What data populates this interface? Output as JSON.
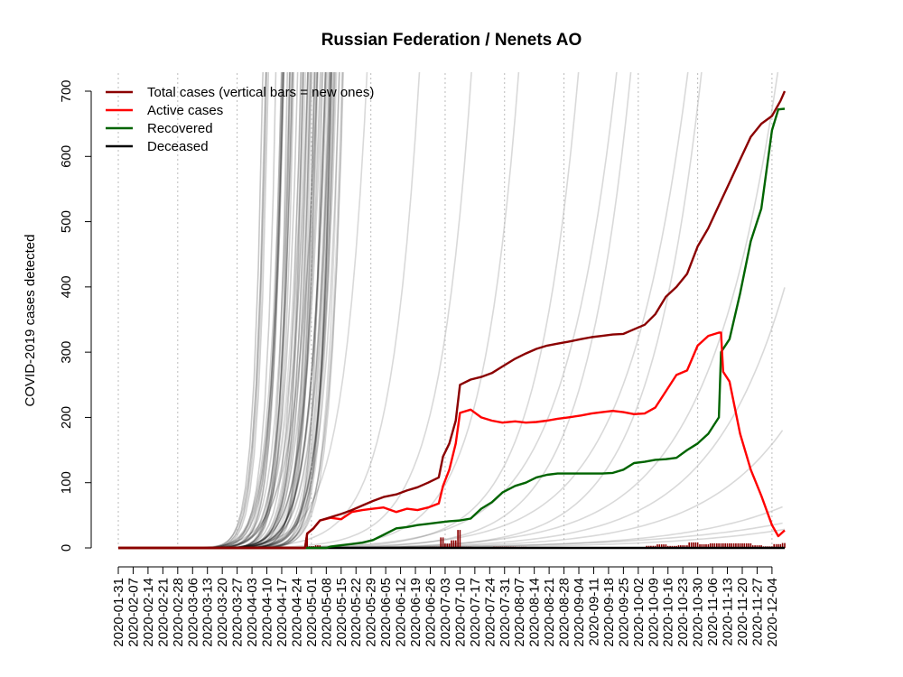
{
  "chart_data": {
    "type": "line",
    "title": "Russian Federation / Nenets AO",
    "xlabel": "",
    "ylabel": "COVID-2019 cases detected",
    "x_axis_type": "date",
    "xlim": [
      "2020-01-31",
      "2020-12-10"
    ],
    "ylim": [
      0,
      700
    ],
    "y_ticks": [
      0,
      100,
      200,
      300,
      400,
      500,
      600,
      700
    ],
    "x_tick_labels": [
      "2020-01-31",
      "2020-02-07",
      "2020-02-14",
      "2020-02-21",
      "2020-02-28",
      "2020-03-06",
      "2020-03-13",
      "2020-03-20",
      "2020-03-27",
      "2020-04-03",
      "2020-04-10",
      "2020-04-17",
      "2020-04-24",
      "2020-05-01",
      "2020-05-08",
      "2020-05-15",
      "2020-05-22",
      "2020-05-29",
      "2020-06-05",
      "2020-06-12",
      "2020-06-19",
      "2020-06-26",
      "2020-07-03",
      "2020-07-10",
      "2020-07-17",
      "2020-07-24",
      "2020-07-31",
      "2020-08-07",
      "2020-08-14",
      "2020-08-21",
      "2020-08-28",
      "2020-09-04",
      "2020-09-11",
      "2020-09-18",
      "2020-09-25",
      "2020-10-02",
      "2020-10-09",
      "2020-10-16",
      "2020-10-23",
      "2020-10-30",
      "2020-11-06",
      "2020-11-13",
      "2020-11-20",
      "2020-11-27",
      "2020-12-04"
    ],
    "monthly_gridlines": [
      "2020-01-31",
      "2020-02-28",
      "2020-03-27",
      "2020-05-01",
      "2020-05-29",
      "2020-07-03",
      "2020-07-31",
      "2020-08-28",
      "2020-10-02",
      "2020-10-30",
      "2020-12-04"
    ],
    "grid": "vertical dotted lines at month starts",
    "legend_position": "top-left",
    "colors": {
      "total": "#8b0000",
      "active": "#ff0000",
      "recovered": "#006400",
      "deceased": "#000000",
      "background_regions": "#000000"
    },
    "series": [
      {
        "name": "Total cases (vertical bars = new ones)",
        "color": "#8b0000",
        "points": [
          [
            "2020-01-31",
            0
          ],
          [
            "2020-04-28",
            0
          ],
          [
            "2020-04-29",
            22
          ],
          [
            "2020-05-02",
            30
          ],
          [
            "2020-05-05",
            42
          ],
          [
            "2020-05-10",
            47
          ],
          [
            "2020-05-15",
            52
          ],
          [
            "2020-05-20",
            58
          ],
          [
            "2020-05-25",
            65
          ],
          [
            "2020-05-30",
            72
          ],
          [
            "2020-06-04",
            78
          ],
          [
            "2020-06-10",
            82
          ],
          [
            "2020-06-15",
            88
          ],
          [
            "2020-06-20",
            93
          ],
          [
            "2020-06-25",
            100
          ],
          [
            "2020-06-30",
            108
          ],
          [
            "2020-07-02",
            140
          ],
          [
            "2020-07-05",
            160
          ],
          [
            "2020-07-08",
            195
          ],
          [
            "2020-07-10",
            250
          ],
          [
            "2020-07-15",
            258
          ],
          [
            "2020-07-20",
            262
          ],
          [
            "2020-07-25",
            268
          ],
          [
            "2020-07-30",
            278
          ],
          [
            "2020-08-05",
            290
          ],
          [
            "2020-08-10",
            298
          ],
          [
            "2020-08-15",
            305
          ],
          [
            "2020-08-20",
            310
          ],
          [
            "2020-08-25",
            313
          ],
          [
            "2020-08-30",
            316
          ],
          [
            "2020-09-05",
            320
          ],
          [
            "2020-09-10",
            323
          ],
          [
            "2020-09-15",
            325
          ],
          [
            "2020-09-20",
            327
          ],
          [
            "2020-09-25",
            328
          ],
          [
            "2020-09-30",
            335
          ],
          [
            "2020-10-05",
            342
          ],
          [
            "2020-10-10",
            358
          ],
          [
            "2020-10-15",
            385
          ],
          [
            "2020-10-20",
            400
          ],
          [
            "2020-10-25",
            420
          ],
          [
            "2020-10-30",
            462
          ],
          [
            "2020-11-04",
            490
          ],
          [
            "2020-11-09",
            525
          ],
          [
            "2020-11-14",
            560
          ],
          [
            "2020-11-19",
            595
          ],
          [
            "2020-11-24",
            630
          ],
          [
            "2020-11-29",
            650
          ],
          [
            "2020-12-04",
            662
          ],
          [
            "2020-12-08",
            685
          ],
          [
            "2020-12-10",
            700
          ]
        ]
      },
      {
        "name": "Active cases",
        "color": "#ff0000",
        "points": [
          [
            "2020-01-31",
            0
          ],
          [
            "2020-04-28",
            0
          ],
          [
            "2020-04-29",
            22
          ],
          [
            "2020-05-02",
            30
          ],
          [
            "2020-05-05",
            42
          ],
          [
            "2020-05-10",
            46
          ],
          [
            "2020-05-15",
            44
          ],
          [
            "2020-05-20",
            55
          ],
          [
            "2020-05-25",
            58
          ],
          [
            "2020-05-30",
            60
          ],
          [
            "2020-06-04",
            62
          ],
          [
            "2020-06-10",
            55
          ],
          [
            "2020-06-15",
            60
          ],
          [
            "2020-06-20",
            58
          ],
          [
            "2020-06-25",
            62
          ],
          [
            "2020-06-30",
            68
          ],
          [
            "2020-07-02",
            95
          ],
          [
            "2020-07-05",
            120
          ],
          [
            "2020-07-08",
            160
          ],
          [
            "2020-07-10",
            207
          ],
          [
            "2020-07-15",
            212
          ],
          [
            "2020-07-20",
            200
          ],
          [
            "2020-07-25",
            195
          ],
          [
            "2020-07-30",
            192
          ],
          [
            "2020-08-05",
            194
          ],
          [
            "2020-08-10",
            192
          ],
          [
            "2020-08-15",
            193
          ],
          [
            "2020-08-20",
            195
          ],
          [
            "2020-08-25",
            198
          ],
          [
            "2020-08-30",
            200
          ],
          [
            "2020-09-05",
            203
          ],
          [
            "2020-09-10",
            206
          ],
          [
            "2020-09-15",
            208
          ],
          [
            "2020-09-20",
            210
          ],
          [
            "2020-09-25",
            208
          ],
          [
            "2020-09-30",
            205
          ],
          [
            "2020-10-05",
            206
          ],
          [
            "2020-10-10",
            215
          ],
          [
            "2020-10-15",
            240
          ],
          [
            "2020-10-20",
            265
          ],
          [
            "2020-10-25",
            272
          ],
          [
            "2020-10-30",
            310
          ],
          [
            "2020-11-04",
            325
          ],
          [
            "2020-11-09",
            330
          ],
          [
            "2020-11-10",
            330
          ],
          [
            "2020-11-11",
            270
          ],
          [
            "2020-11-14",
            255
          ],
          [
            "2020-11-19",
            175
          ],
          [
            "2020-11-24",
            120
          ],
          [
            "2020-11-29",
            80
          ],
          [
            "2020-12-04",
            35
          ],
          [
            "2020-12-07",
            18
          ],
          [
            "2020-12-10",
            27
          ]
        ]
      },
      {
        "name": "Recovered",
        "color": "#006400",
        "points": [
          [
            "2020-01-31",
            0
          ],
          [
            "2020-05-08",
            0
          ],
          [
            "2020-05-10",
            2
          ],
          [
            "2020-05-15",
            4
          ],
          [
            "2020-05-20",
            6
          ],
          [
            "2020-05-25",
            8
          ],
          [
            "2020-05-30",
            12
          ],
          [
            "2020-06-04",
            20
          ],
          [
            "2020-06-10",
            30
          ],
          [
            "2020-06-15",
            32
          ],
          [
            "2020-06-20",
            35
          ],
          [
            "2020-06-25",
            37
          ],
          [
            "2020-06-30",
            39
          ],
          [
            "2020-07-05",
            41
          ],
          [
            "2020-07-10",
            42
          ],
          [
            "2020-07-15",
            45
          ],
          [
            "2020-07-20",
            60
          ],
          [
            "2020-07-25",
            70
          ],
          [
            "2020-07-30",
            85
          ],
          [
            "2020-08-05",
            95
          ],
          [
            "2020-08-10",
            100
          ],
          [
            "2020-08-15",
            108
          ],
          [
            "2020-08-20",
            112
          ],
          [
            "2020-08-25",
            114
          ],
          [
            "2020-08-30",
            114
          ],
          [
            "2020-09-05",
            114
          ],
          [
            "2020-09-10",
            114
          ],
          [
            "2020-09-15",
            114
          ],
          [
            "2020-09-20",
            115
          ],
          [
            "2020-09-25",
            120
          ],
          [
            "2020-09-30",
            130
          ],
          [
            "2020-10-05",
            132
          ],
          [
            "2020-10-10",
            135
          ],
          [
            "2020-10-15",
            136
          ],
          [
            "2020-10-20",
            138
          ],
          [
            "2020-10-25",
            150
          ],
          [
            "2020-10-30",
            160
          ],
          [
            "2020-11-04",
            175
          ],
          [
            "2020-11-09",
            200
          ],
          [
            "2020-11-10",
            300
          ],
          [
            "2020-11-14",
            320
          ],
          [
            "2020-11-19",
            390
          ],
          [
            "2020-11-24",
            470
          ],
          [
            "2020-11-29",
            520
          ],
          [
            "2020-12-04",
            640
          ],
          [
            "2020-12-07",
            672
          ],
          [
            "2020-12-10",
            673
          ]
        ]
      },
      {
        "name": "Deceased",
        "color": "#000000",
        "points": [
          [
            "2020-01-31",
            0
          ],
          [
            "2020-12-10",
            0
          ]
        ]
      }
    ]
  }
}
